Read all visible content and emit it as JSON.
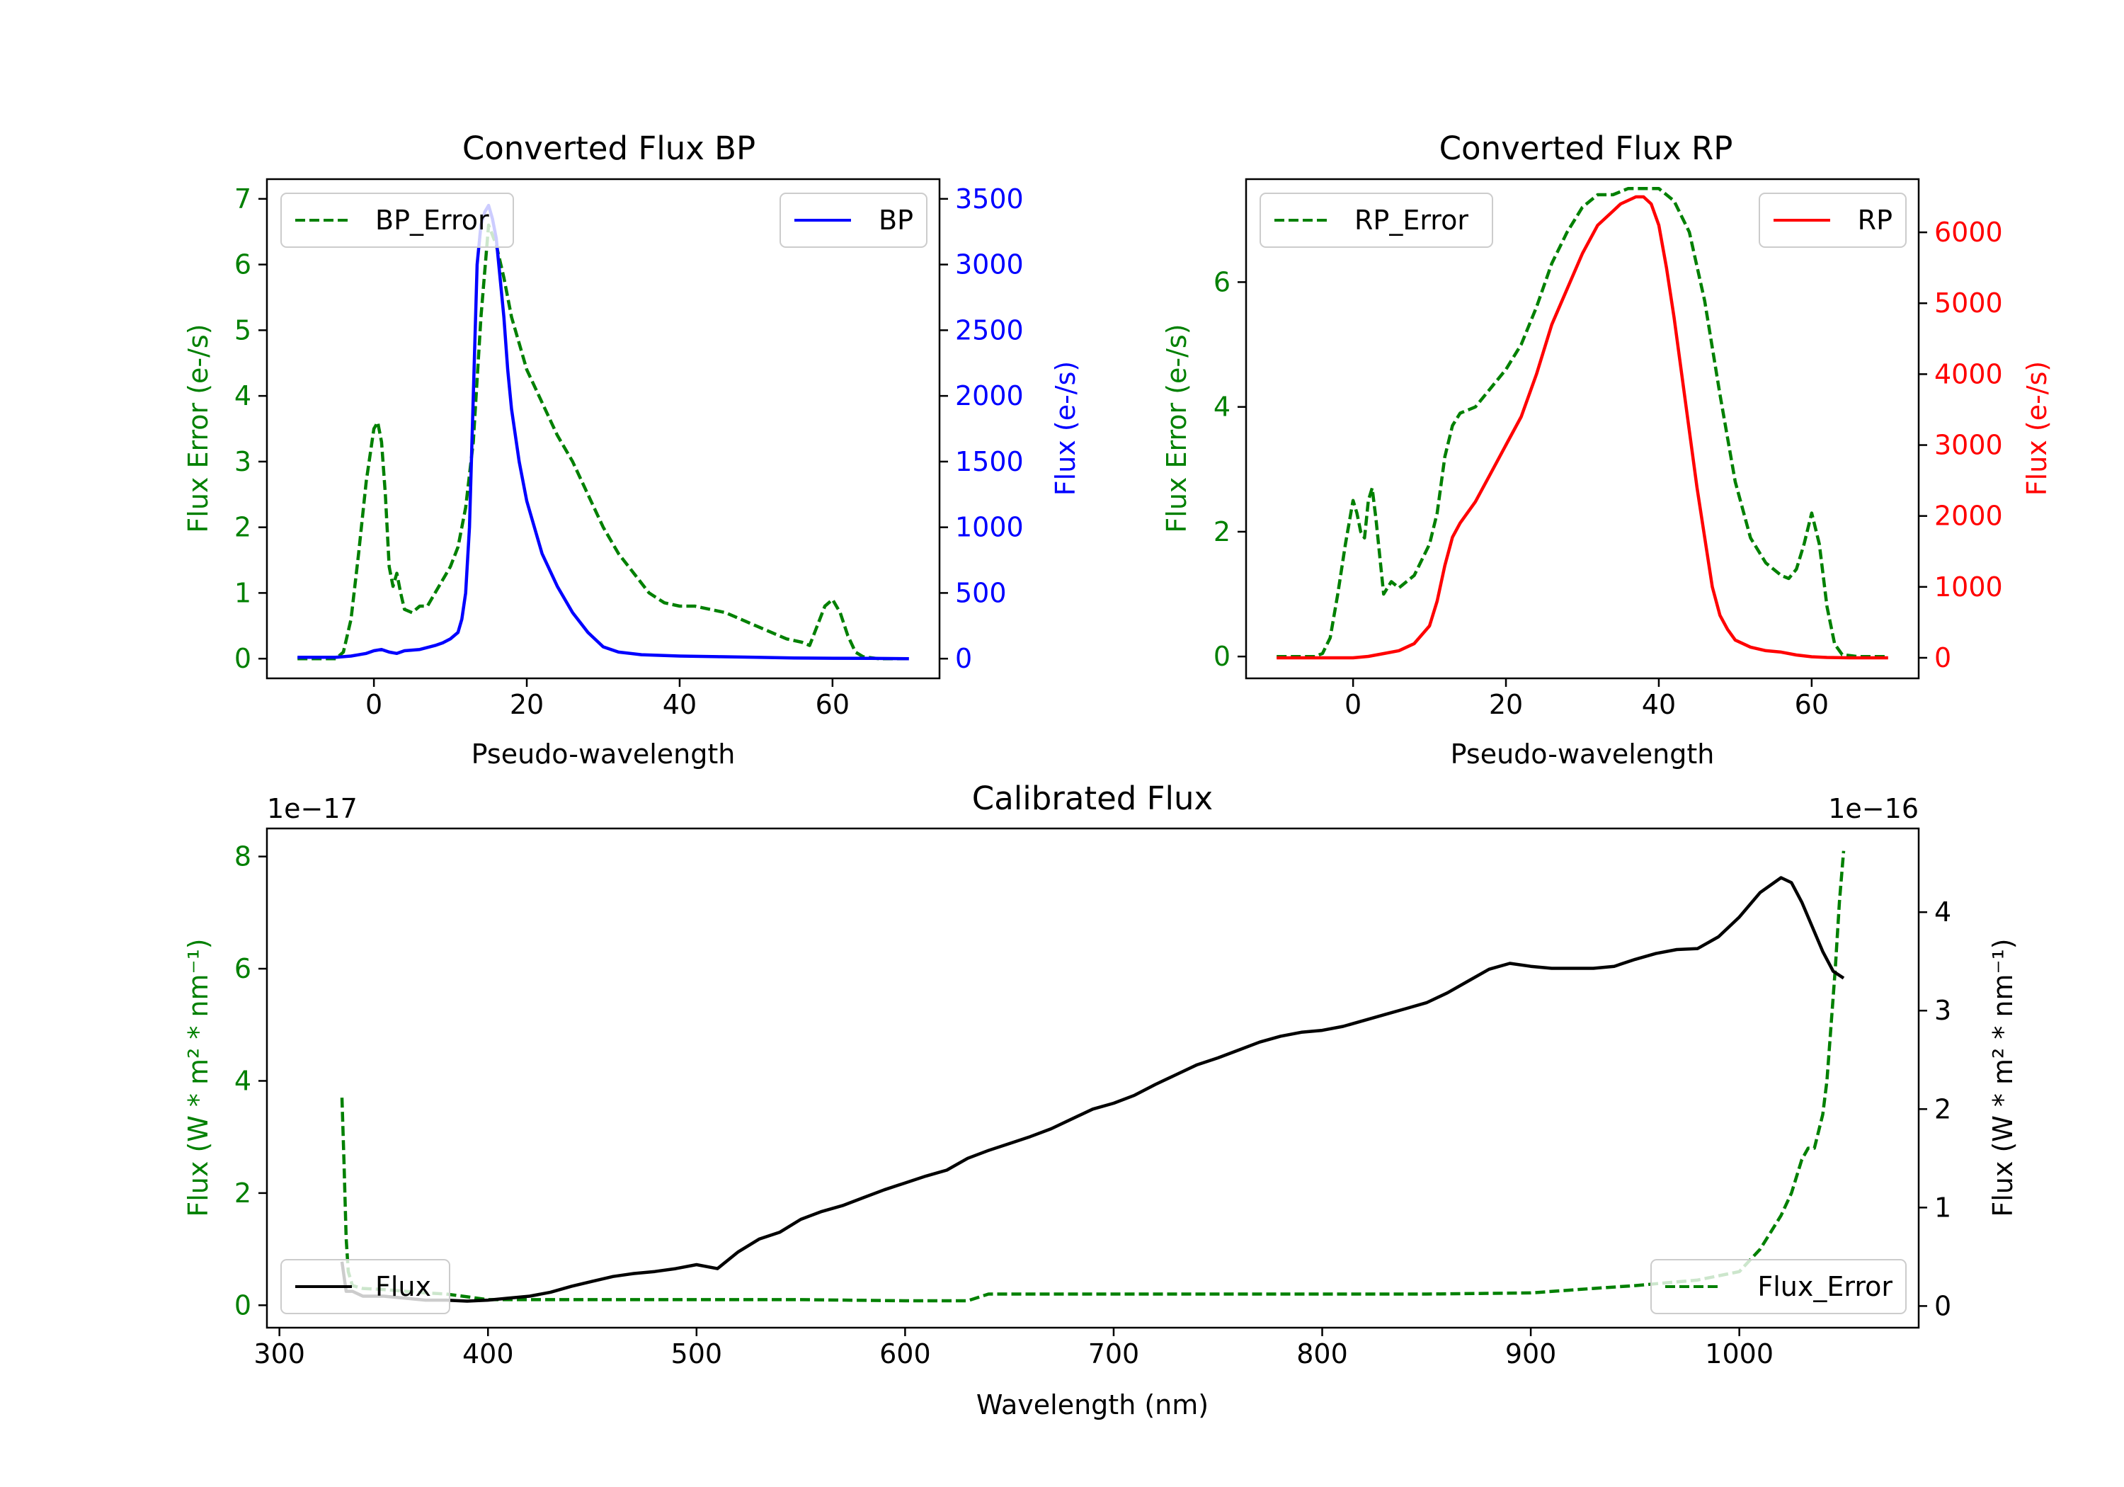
{
  "figure": {
    "background": "#ffffff"
  },
  "colors": {
    "green": "#008000",
    "blue": "#0000ff",
    "red": "#ff0000",
    "black": "#000000"
  },
  "chart_data": [
    {
      "id": "bp",
      "type": "line",
      "title": "Converted Flux BP",
      "xlabel": "Pseudo-wavelength",
      "ylabel_left": "Flux Error (e-/s)",
      "ylabel_right": "Flux (e-/s)",
      "xlim": [
        -14,
        74
      ],
      "ylim_left": [
        -0.3,
        7.3
      ],
      "ylim_right": [
        -150,
        3650
      ],
      "xticks": [
        0,
        20,
        40,
        60
      ],
      "yticks_left": [
        0,
        1,
        2,
        3,
        4,
        5,
        6,
        7
      ],
      "yticks_right": [
        0,
        500,
        1000,
        1500,
        2000,
        2500,
        3000,
        3500
      ],
      "legend_left": {
        "label": "BP_Error",
        "placement": "upper left"
      },
      "legend_right": {
        "label": "BP",
        "placement": "upper right"
      },
      "series": [
        {
          "name": "BP_Error",
          "axis": "left",
          "color": "#008000",
          "style": "dashed",
          "x": [
            -10,
            -5,
            -4,
            -3,
            -2,
            -1,
            0,
            0.5,
            1,
            1.5,
            2,
            2.5,
            3,
            3.5,
            4,
            5,
            6,
            7,
            8,
            9,
            10,
            11,
            12,
            13,
            14,
            15,
            16,
            17,
            18,
            19,
            20,
            22,
            24,
            26,
            28,
            30,
            32,
            34,
            36,
            38,
            40,
            42,
            44,
            46,
            48,
            50,
            52,
            54,
            56,
            57,
            58,
            59,
            60,
            61,
            62,
            63,
            64,
            66,
            68,
            70
          ],
          "y": [
            0,
            0,
            0.1,
            0.6,
            1.6,
            2.7,
            3.5,
            3.6,
            3.3,
            2.5,
            1.4,
            1.1,
            1.3,
            1.0,
            0.75,
            0.7,
            0.8,
            0.8,
            1.0,
            1.2,
            1.4,
            1.7,
            2.3,
            3.3,
            5.2,
            6.6,
            6.3,
            5.8,
            5.2,
            4.8,
            4.4,
            3.9,
            3.4,
            3.0,
            2.5,
            2.0,
            1.6,
            1.3,
            1.0,
            0.85,
            0.8,
            0.8,
            0.75,
            0.7,
            0.6,
            0.5,
            0.4,
            0.3,
            0.25,
            0.2,
            0.5,
            0.8,
            0.9,
            0.7,
            0.35,
            0.1,
            0.03,
            0,
            0,
            0
          ]
        },
        {
          "name": "BP",
          "axis": "right",
          "color": "#0000ff",
          "style": "solid",
          "x": [
            -10,
            -5,
            -3,
            -1,
            0,
            1,
            2,
            3,
            4,
            6,
            8,
            9,
            10,
            11,
            11.5,
            12,
            12.5,
            13,
            13.5,
            14,
            14.5,
            15,
            15.5,
            16,
            16.5,
            17,
            17.5,
            18,
            19,
            20,
            21,
            22,
            24,
            26,
            28,
            30,
            32,
            35,
            40,
            45,
            50,
            55,
            60,
            65,
            70
          ],
          "y": [
            10,
            10,
            20,
            40,
            60,
            70,
            50,
            40,
            60,
            70,
            100,
            120,
            150,
            200,
            300,
            500,
            1000,
            2000,
            3000,
            3300,
            3400,
            3450,
            3350,
            3200,
            2900,
            2600,
            2200,
            1900,
            1500,
            1200,
            1000,
            800,
            550,
            350,
            200,
            90,
            50,
            30,
            20,
            15,
            10,
            5,
            3,
            2,
            0
          ]
        }
      ]
    },
    {
      "id": "rp",
      "type": "line",
      "title": "Converted Flux RP",
      "xlabel": "Pseudo-wavelength",
      "ylabel_left": "Flux Error (e-/s)",
      "ylabel_right": "Flux (e-/s)",
      "xlim": [
        -14,
        74
      ],
      "ylim_left": [
        -0.35,
        7.65
      ],
      "ylim_right": [
        -290,
        6750
      ],
      "xticks": [
        0,
        20,
        40,
        60
      ],
      "yticks_left": [
        0,
        2,
        4,
        6
      ],
      "yticks_right": [
        0,
        1000,
        2000,
        3000,
        4000,
        5000,
        6000
      ],
      "legend_left": {
        "label": "RP_Error",
        "placement": "upper left"
      },
      "legend_right": {
        "label": "RP",
        "placement": "upper right"
      },
      "series": [
        {
          "name": "RP_Error",
          "axis": "left",
          "color": "#008000",
          "style": "dashed",
          "x": [
            -10,
            -5,
            -4,
            -3,
            -2,
            -1,
            0,
            0.5,
            1,
            1.5,
            2,
            2.5,
            3,
            3.5,
            4,
            5,
            6,
            8,
            10,
            11,
            12,
            13,
            14,
            16,
            18,
            20,
            22,
            24,
            26,
            28,
            30,
            32,
            34,
            36,
            38,
            40,
            42,
            44,
            46,
            48,
            50,
            52,
            54,
            55,
            56,
            57,
            58,
            59,
            60,
            61,
            62,
            63,
            64,
            66,
            68,
            70
          ],
          "y": [
            0,
            0,
            0.05,
            0.3,
            1.0,
            1.8,
            2.5,
            2.3,
            2.0,
            1.9,
            2.5,
            2.7,
            2.2,
            1.6,
            1.0,
            1.2,
            1.1,
            1.3,
            1.8,
            2.3,
            3.2,
            3.7,
            3.9,
            4.0,
            4.3,
            4.6,
            5.0,
            5.6,
            6.3,
            6.8,
            7.2,
            7.4,
            7.4,
            7.5,
            7.5,
            7.5,
            7.3,
            6.8,
            5.7,
            4.2,
            2.8,
            1.9,
            1.5,
            1.4,
            1.3,
            1.25,
            1.4,
            1.8,
            2.3,
            1.8,
            0.8,
            0.2,
            0.03,
            0,
            0,
            0
          ]
        },
        {
          "name": "RP",
          "axis": "right",
          "color": "#ff0000",
          "style": "solid",
          "x": [
            -10,
            -5,
            0,
            2,
            4,
            6,
            8,
            10,
            11,
            12,
            13,
            14,
            16,
            18,
            20,
            22,
            24,
            26,
            28,
            30,
            32,
            34,
            35,
            36,
            37,
            38,
            39,
            40,
            41,
            42,
            43,
            44,
            45,
            46,
            47,
            48,
            49,
            50,
            52,
            54,
            56,
            58,
            60,
            62,
            65,
            70
          ],
          "y": [
            0,
            0,
            0,
            20,
            60,
            100,
            200,
            450,
            800,
            1300,
            1700,
            1900,
            2200,
            2600,
            3000,
            3400,
            4000,
            4700,
            5200,
            5700,
            6100,
            6300,
            6400,
            6450,
            6500,
            6500,
            6400,
            6100,
            5500,
            4800,
            4000,
            3200,
            2400,
            1700,
            1000,
            600,
            400,
            250,
            150,
            100,
            80,
            40,
            15,
            5,
            0,
            0
          ]
        }
      ]
    },
    {
      "id": "cal",
      "type": "line",
      "title": "Calibrated Flux",
      "xlabel": "Wavelength (nm)",
      "ylabel_left": "Flux (W * m² * nm⁻¹)",
      "ylabel_right": "Flux (W * m² * nm⁻¹)",
      "offset_left": "1e−17",
      "offset_right": "1e−16",
      "xlim": [
        294,
        1086
      ],
      "ylim_left": [
        -0.4,
        8.5
      ],
      "ylim_right": [
        -0.22,
        4.85
      ],
      "xticks": [
        300,
        400,
        500,
        600,
        700,
        800,
        900,
        1000
      ],
      "yticks_left": [
        0,
        2,
        4,
        6,
        8
      ],
      "yticks_right": [
        0,
        1,
        2,
        3,
        4
      ],
      "legend_left": {
        "label": "Flux",
        "placement": "lower left"
      },
      "legend_right": {
        "label": "Flux_Error",
        "placement": "lower right"
      },
      "series": [
        {
          "name": "Flux_Error",
          "axis": "left",
          "color": "#008000",
          "style": "dashed",
          "x": [
            330,
            331,
            332,
            333,
            335,
            340,
            350,
            360,
            370,
            380,
            390,
            400,
            420,
            450,
            500,
            550,
            600,
            630,
            640,
            650,
            700,
            750,
            800,
            850,
            900,
            930,
            950,
            980,
            1000,
            1005,
            1010,
            1015,
            1020,
            1025,
            1030,
            1033,
            1036,
            1040,
            1042,
            1044,
            1046,
            1048,
            1050
          ],
          "y": [
            3.7,
            2.5,
            1.2,
            0.6,
            0.35,
            0.3,
            0.28,
            0.25,
            0.22,
            0.2,
            0.15,
            0.1,
            0.1,
            0.1,
            0.1,
            0.1,
            0.08,
            0.08,
            0.2,
            0.2,
            0.2,
            0.2,
            0.2,
            0.2,
            0.22,
            0.3,
            0.35,
            0.45,
            0.6,
            0.8,
            1.0,
            1.3,
            1.6,
            2.0,
            2.6,
            2.8,
            2.8,
            3.4,
            4.0,
            5.0,
            6.0,
            7.2,
            8.1
          ]
        },
        {
          "name": "Flux",
          "axis": "right",
          "color": "#000000",
          "style": "solid",
          "x": [
            330,
            332,
            335,
            340,
            350,
            360,
            370,
            380,
            390,
            400,
            410,
            420,
            430,
            440,
            450,
            460,
            470,
            480,
            490,
            500,
            510,
            520,
            530,
            540,
            550,
            560,
            570,
            580,
            590,
            600,
            610,
            620,
            630,
            640,
            650,
            660,
            670,
            680,
            690,
            700,
            710,
            720,
            730,
            740,
            750,
            760,
            770,
            780,
            790,
            800,
            810,
            820,
            830,
            840,
            850,
            860,
            870,
            880,
            890,
            900,
            910,
            920,
            930,
            940,
            950,
            960,
            970,
            980,
            990,
            1000,
            1010,
            1020,
            1025,
            1030,
            1035,
            1040,
            1045,
            1050
          ],
          "y": [
            0.45,
            0.15,
            0.15,
            0.1,
            0.1,
            0.08,
            0.06,
            0.06,
            0.05,
            0.06,
            0.08,
            0.1,
            0.14,
            0.2,
            0.25,
            0.3,
            0.33,
            0.35,
            0.38,
            0.42,
            0.38,
            0.55,
            0.68,
            0.75,
            0.88,
            0.96,
            1.02,
            1.1,
            1.18,
            1.25,
            1.32,
            1.38,
            1.5,
            1.58,
            1.65,
            1.72,
            1.8,
            1.9,
            2.0,
            2.06,
            2.14,
            2.25,
            2.35,
            2.45,
            2.52,
            2.6,
            2.68,
            2.74,
            2.78,
            2.8,
            2.84,
            2.9,
            2.96,
            3.02,
            3.08,
            3.18,
            3.3,
            3.42,
            3.48,
            3.45,
            3.43,
            3.43,
            3.43,
            3.45,
            3.52,
            3.58,
            3.62,
            3.63,
            3.75,
            3.95,
            4.2,
            4.35,
            4.3,
            4.1,
            3.85,
            3.6,
            3.4,
            3.33
          ]
        }
      ]
    }
  ]
}
